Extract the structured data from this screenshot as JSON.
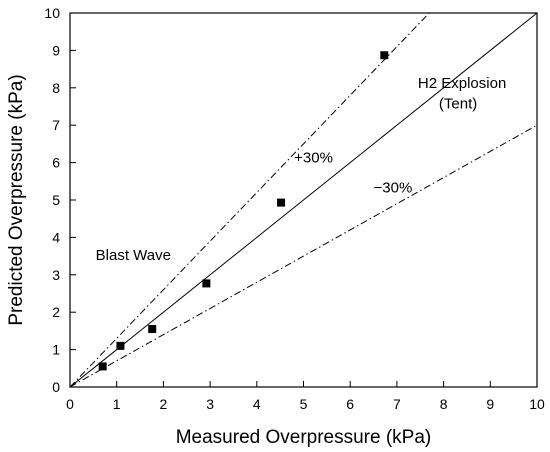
{
  "chart_data": {
    "type": "scatter",
    "title": "",
    "xlabel": "Measured Overpressure (kPa)",
    "ylabel": "Predicted Overpressure (kPa)",
    "xlim": [
      0,
      10
    ],
    "ylim": [
      0,
      10
    ],
    "xticks": [
      "0",
      "1",
      "2",
      "3",
      "4",
      "5",
      "6",
      "7",
      "8",
      "9",
      "10"
    ],
    "yticks": [
      "0",
      "1",
      "2",
      "3",
      "4",
      "5",
      "6",
      "7",
      "8",
      "9",
      "10"
    ],
    "grid": false,
    "legend": "none",
    "series": [
      {
        "marker": "square",
        "color": "#000000",
        "points": [
          {
            "x": 0.7,
            "y": 0.55
          },
          {
            "x": 1.08,
            "y": 1.1
          },
          {
            "x": 1.76,
            "y": 1.55
          },
          {
            "x": 2.92,
            "y": 2.77
          },
          {
            "x": 4.52,
            "y": 4.93
          },
          {
            "x": 6.73,
            "y": 8.87
          }
        ]
      }
    ],
    "reference_lines": [
      {
        "id": "equal",
        "slope": 1.0,
        "style": "solid"
      },
      {
        "id": "upper",
        "slope": 1.3,
        "style": "dash-dot"
      },
      {
        "id": "lower",
        "slope": 0.7,
        "style": "dash-dot"
      }
    ],
    "annotations": [
      {
        "id": "plus30",
        "text": "+30%",
        "x": 4.8,
        "y": 6.0
      },
      {
        "id": "minus30",
        "text": "−30%",
        "x": 6.5,
        "y": 5.2
      },
      {
        "id": "blast",
        "text": "Blast Wave",
        "x": 0.55,
        "y": 3.4
      },
      {
        "id": "h2a",
        "text": "H2 Explosion",
        "x": 7.45,
        "y": 8.0
      },
      {
        "id": "h2b",
        "text": "(Tent)",
        "x": 7.9,
        "y": 7.45
      }
    ]
  }
}
